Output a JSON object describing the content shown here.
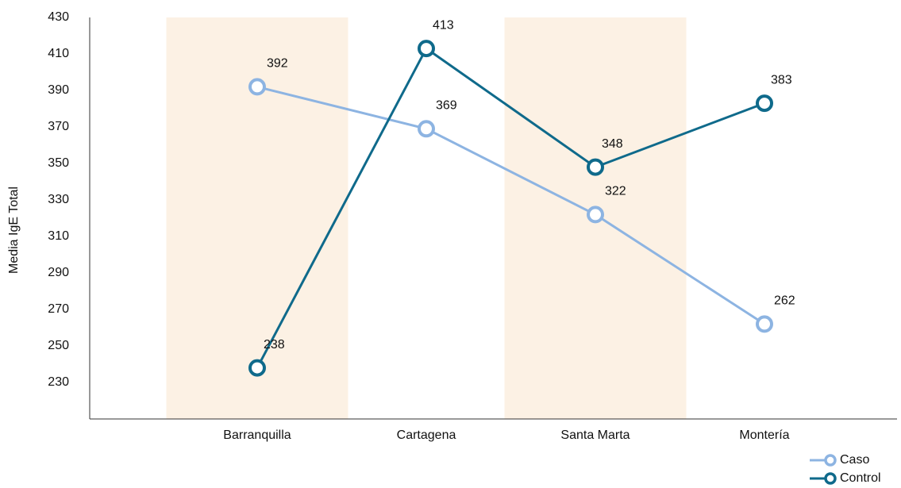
{
  "chart_data": {
    "type": "line",
    "y_label": "Media IgE Total",
    "categories": [
      "Barranquilla",
      "Cartagena",
      "Santa Marta",
      "Montería"
    ],
    "series": [
      {
        "name": "Caso",
        "color": "#8db4e2",
        "values": [
          392,
          369,
          322,
          262
        ]
      },
      {
        "name": "Control",
        "color": "#0f6a8b",
        "values": [
          238,
          413,
          348,
          383
        ]
      }
    ],
    "ylim": [
      210,
      430
    ],
    "yticks": [
      230,
      250,
      270,
      290,
      310,
      330,
      350,
      370,
      390,
      410,
      430
    ],
    "band_shading_color": "#fcf1e4",
    "legend": "bottom-right"
  }
}
